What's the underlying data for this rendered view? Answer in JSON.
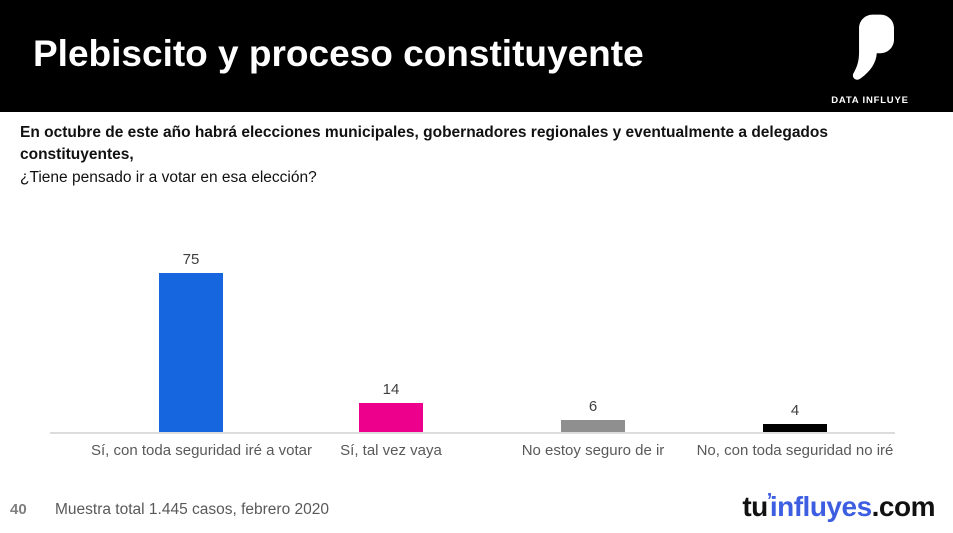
{
  "header": {
    "title": "Plebiscito y proceso constituyente",
    "brand_label": "DATA INFLUYE"
  },
  "question": {
    "bold_text": "En octubre de este año habrá elecciones municipales, gobernadores regionales y eventualmente a delegados constituyentes,",
    "regular_text": "¿Tiene pensado ir a votar en esa elección?"
  },
  "chart_data": {
    "type": "bar",
    "title": "",
    "categories": [
      "Sí, con toda seguridad iré a votar",
      "Sí, tal vez vaya",
      "No estoy seguro de ir",
      "No, con toda seguridad no iré"
    ],
    "values": [
      75,
      14,
      6,
      4
    ],
    "bar_colors": [
      "#1666e0",
      "#ec008c",
      "#8f8f8f",
      "#000000"
    ],
    "value_label_color": "#404040",
    "category_label_color": "#595959",
    "axis_line_color": "#dcdcdc",
    "xlabel": "",
    "ylabel": "",
    "ylim": [
      0,
      80
    ],
    "grid": false,
    "legend": false,
    "data_labels": true
  },
  "footer": {
    "page_number": "40",
    "source_note": "Muestra total 1.445 casos, febrero 2020",
    "logo": {
      "part1": "tu",
      "accent": "’",
      "part2": "influyes",
      "part3": ".com",
      "accent_color": "#3d5ee1",
      "dark_color": "#111111"
    }
  }
}
